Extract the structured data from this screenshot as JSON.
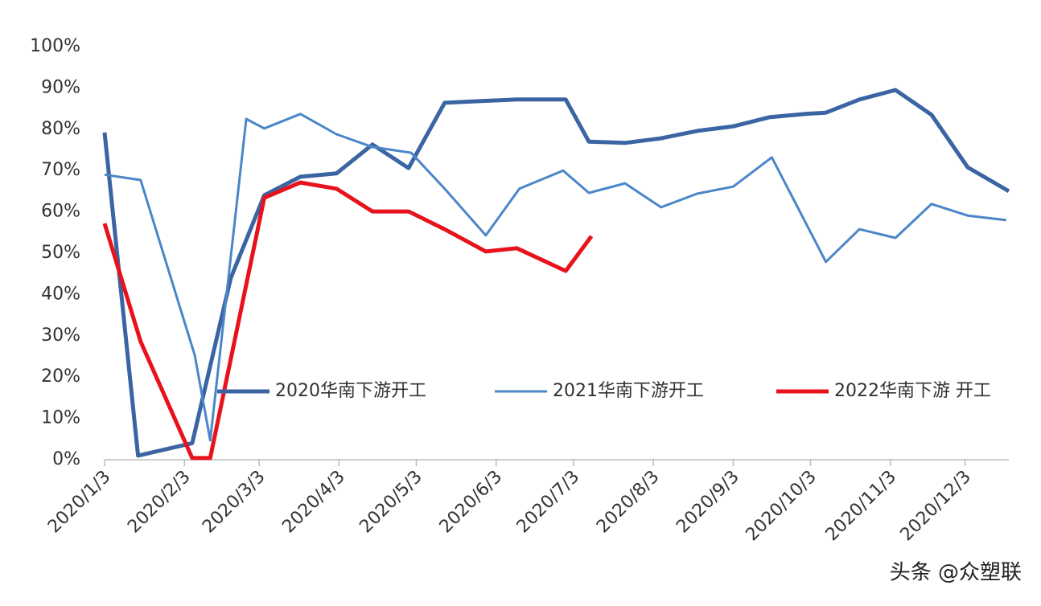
{
  "chart_data": {
    "type": "line",
    "xlim": [
      0,
      351
    ],
    "xticks": [
      {
        "value": 0,
        "label": "2020/1/3"
      },
      {
        "value": 31,
        "label": "2020/2/3"
      },
      {
        "value": 60,
        "label": "2020/3/3"
      },
      {
        "value": 91,
        "label": "2020/4/3"
      },
      {
        "value": 121,
        "label": "2020/5/3"
      },
      {
        "value": 152,
        "label": "2020/6/3"
      },
      {
        "value": 182,
        "label": "2020/7/3"
      },
      {
        "value": 213,
        "label": "2020/8/3"
      },
      {
        "value": 244,
        "label": "2020/9/3"
      },
      {
        "value": 274,
        "label": "2020/10/3"
      },
      {
        "value": 305,
        "label": "2020/11/3"
      },
      {
        "value": 334,
        "label": "2020/12/3"
      }
    ],
    "ylim": [
      0,
      100
    ],
    "yticks": [
      {
        "value": 0,
        "label": "0%"
      },
      {
        "value": 10,
        "label": "10%"
      },
      {
        "value": 20,
        "label": "20%"
      },
      {
        "value": 30,
        "label": "30%"
      },
      {
        "value": 40,
        "label": "40%"
      },
      {
        "value": 50,
        "label": "50%"
      },
      {
        "value": 60,
        "label": "60%"
      },
      {
        "value": 70,
        "label": "70%"
      },
      {
        "value": 80,
        "label": "80%"
      },
      {
        "value": 90,
        "label": "90%"
      },
      {
        "value": 100,
        "label": "100%"
      }
    ],
    "series": [
      {
        "name": "2020华南下游开工",
        "color": "#3b64a3",
        "width": 5,
        "x": [
          0,
          13,
          34,
          49,
          62,
          76,
          90,
          104,
          118,
          132,
          146,
          160,
          179,
          188,
          202,
          216,
          230,
          244,
          258,
          272,
          280,
          293,
          307,
          321,
          335,
          351
        ],
        "values": [
          79.2,
          1,
          4,
          44,
          64,
          68.5,
          69.3,
          76.3,
          70.6,
          86.4,
          86.8,
          87.2,
          87.2,
          77,
          76.7,
          77.8,
          79.6,
          80.7,
          82.9,
          83.7,
          84,
          87.2,
          89.5,
          83.5,
          70.8,
          65
        ]
      },
      {
        "name": "2021华南下游开工",
        "color": "#4a86c8",
        "width": 3,
        "x": [
          0,
          14,
          35,
          41,
          55,
          62,
          76,
          90,
          104,
          119,
          132,
          148,
          161,
          178,
          188,
          202,
          216,
          230,
          244,
          259,
          280,
          293,
          307,
          321,
          335,
          350
        ],
        "values": [
          69,
          67.7,
          25.3,
          4.7,
          82.5,
          80.2,
          83.7,
          78.8,
          75.7,
          74.3,
          65.6,
          54.3,
          65.6,
          70,
          64.6,
          66.9,
          61.1,
          64.4,
          66.1,
          73.2,
          47.9,
          55.8,
          53.7,
          61.9,
          59.1,
          58
        ]
      },
      {
        "name": "2022华南下游 开工",
        "color": "#e8121c",
        "width": 5,
        "x": [
          0,
          14,
          34,
          41,
          62,
          76,
          90,
          104,
          118,
          132,
          148,
          160,
          179,
          189
        ],
        "values": [
          57.2,
          28.6,
          0.4,
          0.4,
          63.4,
          67.1,
          65.6,
          60.1,
          60.1,
          55.8,
          50.4,
          51.2,
          45.7,
          54.1
        ]
      }
    ],
    "grid": false,
    "watermark": "头条 @众塑联"
  }
}
